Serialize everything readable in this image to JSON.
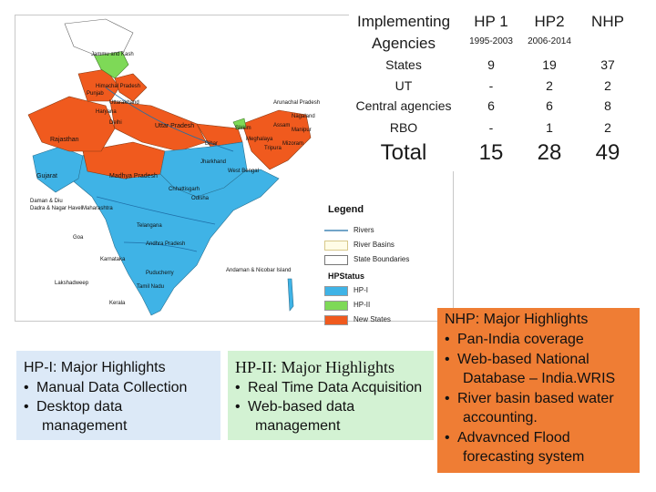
{
  "table": {
    "header": {
      "col1_line1": "Implementing",
      "col1_line2": "Agencies",
      "col2": "HP 1",
      "col2_sub": "1995-2003",
      "col3": "HP2",
      "col3_sub": "2006-2014",
      "col4": "NHP"
    },
    "rows": [
      {
        "label": "States",
        "hp1": "9",
        "hp2": "19",
        "nhp": "37"
      },
      {
        "label": "UT",
        "hp1": "-",
        "hp2": "2",
        "nhp": "2"
      },
      {
        "label": "Central agencies",
        "hp1": "6",
        "hp2": "6",
        "nhp": "8"
      },
      {
        "label": "RBO",
        "hp1": "-",
        "hp2": "1",
        "nhp": "2"
      }
    ],
    "total": {
      "label": "Total",
      "hp1": "15",
      "hp2": "28",
      "nhp": "49"
    }
  },
  "map": {
    "labels": {
      "jk": "Jammu and Kash",
      "hp": "Himachal Pradesh",
      "pb": "Punjab",
      "uk": "Uttarakhand",
      "hr": "Haryana",
      "dl": "Delhi",
      "raj": "Rajasthan",
      "up": "Uttar Pradesh",
      "bih": "Bihar",
      "sik": "Sikkim",
      "ap_ne": "Arunachal Pradesh",
      "as": "Assam",
      "ngl": "Nagaland",
      "man": "Manipur",
      "miz": "Mizoram",
      "trp": "Tripura",
      "meg": "Meghalaya",
      "jh": "Jharkhand",
      "wb": "West Bengal",
      "mp": "Madhya Pradesh",
      "guj": "Gujarat",
      "cg": "Chhattisgarh",
      "od": "Odisha",
      "dd": "Daman & Diu",
      "dnh": "Dadra & Nagar Haveli",
      "mh": "Maharashtra",
      "tel": "Telangana",
      "ap": "Andhra Pradesh",
      "goa": "Goa",
      "kar": "Karnataka",
      "pdy": "Puducherry",
      "tn": "Tamil Nadu",
      "kl": "Kerala",
      "lak": "Lakshadweep",
      "an": "Andaman & Nicobar Island"
    }
  },
  "legend": {
    "title": "Legend",
    "rivers": "Rivers",
    "river_basins": "River Basins",
    "state_boundaries": "State Boundaries",
    "status_title": "HPStatus",
    "hp1": "HP-I",
    "hp2": "HP-II",
    "new_states": "New States",
    "colors": {
      "hp1": "#3fb3e6",
      "hp2": "#7ed957",
      "new_states": "#f05a1e"
    }
  },
  "hp1_box": {
    "title": "HP-I: Major Highlights",
    "bullets": [
      "Manual Data Collection",
      "Desktop data"
    ],
    "continuation": "management"
  },
  "hp2_box": {
    "title": "HP-II: Major Highlights",
    "bullets": [
      "Real Time Data Acquisition",
      "Web-based data"
    ],
    "continuation": "management"
  },
  "nhp_box": {
    "title": "NHP: Major Highlights",
    "b1": "Pan-India coverage",
    "b2_line1": "Web-based National",
    "b2_line2": "Database – India.WRIS",
    "b3_line1": "River basin based water",
    "b3_line2": "accounting.",
    "b4_line1": "Advavnced Flood",
    "b4_line2": "forecasting system"
  },
  "bullet_char": "•"
}
